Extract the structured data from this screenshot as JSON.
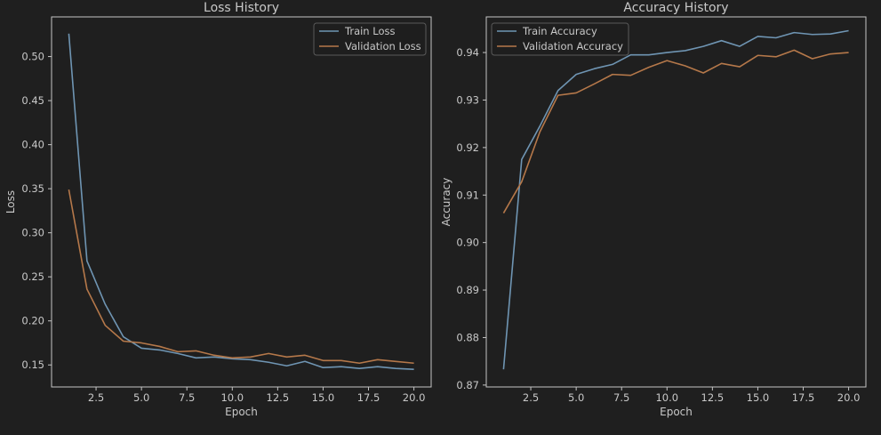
{
  "colors": {
    "background": "#1f1f1f",
    "axes_face": "#1f1f1f",
    "spine": "#c4c4c4",
    "text": "#c8c8c8",
    "train": "#6f95b3",
    "validation": "#b5784a"
  },
  "chart_data": [
    {
      "type": "line",
      "title": "Loss History",
      "xlabel": "Epoch",
      "ylabel": "Loss",
      "xlim": [
        0.05,
        20.95
      ],
      "ylim": [
        0.125,
        0.545
      ],
      "xticks": [
        2.5,
        5.0,
        7.5,
        10.0,
        12.5,
        15.0,
        17.5,
        20.0
      ],
      "xtick_labels": [
        "2.5",
        "5.0",
        "7.5",
        "10.0",
        "12.5",
        "15.0",
        "17.5",
        "20.0"
      ],
      "yticks": [
        0.15,
        0.2,
        0.25,
        0.3,
        0.35,
        0.4,
        0.45,
        0.5
      ],
      "ytick_labels": [
        "0.15",
        "0.20",
        "0.25",
        "0.30",
        "0.35",
        "0.40",
        "0.45",
        "0.50"
      ],
      "grid": false,
      "legend_position": "top-right",
      "x": [
        1,
        2,
        3,
        4,
        5,
        6,
        7,
        8,
        9,
        10,
        11,
        12,
        13,
        14,
        15,
        16,
        17,
        18,
        19,
        20
      ],
      "series": [
        {
          "name": "Train Loss",
          "color": "#6f95b3",
          "values": [
            0.526,
            0.268,
            0.219,
            0.182,
            0.169,
            0.167,
            0.163,
            0.158,
            0.159,
            0.157,
            0.156,
            0.153,
            0.149,
            0.154,
            0.147,
            0.148,
            0.146,
            0.148,
            0.146,
            0.145
          ]
        },
        {
          "name": "Validation Loss",
          "color": "#b5784a",
          "values": [
            0.349,
            0.236,
            0.195,
            0.177,
            0.175,
            0.171,
            0.165,
            0.166,
            0.161,
            0.158,
            0.159,
            0.163,
            0.159,
            0.161,
            0.155,
            0.155,
            0.152,
            0.156,
            0.154,
            0.152
          ]
        }
      ]
    },
    {
      "type": "line",
      "title": "Accuracy History",
      "xlabel": "Epoch",
      "ylabel": "Accuracy",
      "xlim": [
        0.05,
        20.95
      ],
      "ylim": [
        0.8696,
        0.9475
      ],
      "xticks": [
        2.5,
        5.0,
        7.5,
        10.0,
        12.5,
        15.0,
        17.5,
        20.0
      ],
      "xtick_labels": [
        "2.5",
        "5.0",
        "7.5",
        "10.0",
        "12.5",
        "15.0",
        "17.5",
        "20.0"
      ],
      "yticks": [
        0.87,
        0.88,
        0.89,
        0.9,
        0.91,
        0.92,
        0.93,
        0.94
      ],
      "ytick_labels": [
        "0.87",
        "0.88",
        "0.89",
        "0.90",
        "0.91",
        "0.92",
        "0.93",
        "0.94"
      ],
      "grid": false,
      "legend_position": "top-left",
      "x": [
        1,
        2,
        3,
        4,
        5,
        6,
        7,
        8,
        9,
        10,
        11,
        12,
        13,
        14,
        15,
        16,
        17,
        18,
        19,
        20
      ],
      "series": [
        {
          "name": "Train Accuracy",
          "color": "#6f95b3",
          "values": [
            0.8733,
            0.9175,
            0.9245,
            0.932,
            0.9354,
            0.9366,
            0.9375,
            0.9395,
            0.9395,
            0.94,
            0.9404,
            0.9413,
            0.9425,
            0.9413,
            0.9434,
            0.9431,
            0.9442,
            0.9438,
            0.9439,
            0.9446
          ]
        },
        {
          "name": "Validation Accuracy",
          "color": "#b5784a",
          "values": [
            0.9062,
            0.9128,
            0.9233,
            0.931,
            0.9315,
            0.9334,
            0.9354,
            0.9352,
            0.9369,
            0.9383,
            0.9372,
            0.9357,
            0.9377,
            0.937,
            0.9394,
            0.9391,
            0.9405,
            0.9387,
            0.9397,
            0.94
          ]
        }
      ]
    }
  ]
}
